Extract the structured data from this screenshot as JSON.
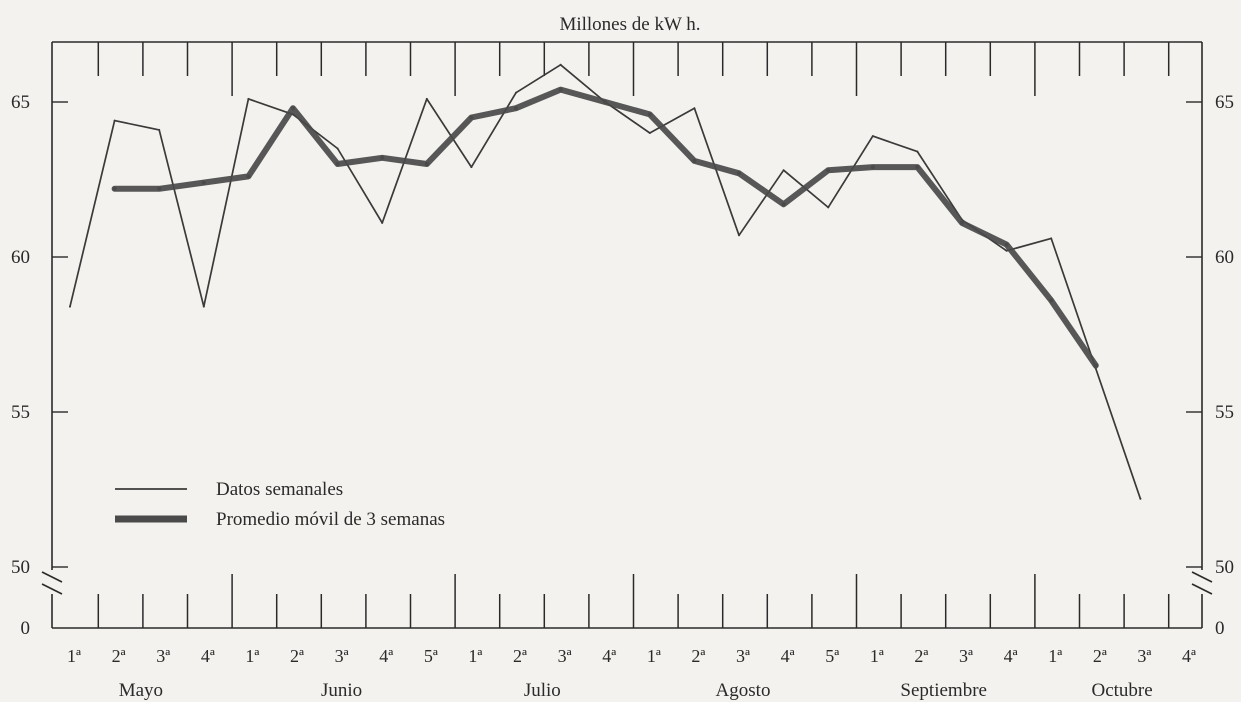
{
  "chart_data": {
    "type": "line",
    "title": "Millones de kW h.",
    "y_ticks_left": [
      "0",
      "50",
      "55",
      "60",
      "65"
    ],
    "y_ticks_right": [
      "0",
      "50",
      "55",
      "60",
      "65"
    ],
    "y_tick_values": [
      50,
      55,
      60,
      65
    ],
    "ylim": [
      50,
      67
    ],
    "y_axis_break": "between 0 and 50",
    "weeks": [
      "1ª",
      "2ª",
      "3ª",
      "4ª",
      "1ª",
      "2ª",
      "3ª",
      "4ª",
      "5ª",
      "1ª",
      "2ª",
      "3ª",
      "4ª",
      "1ª",
      "2ª",
      "3ª",
      "4ª",
      "5ª",
      "1ª",
      "2ª",
      "3ª",
      "4ª",
      "1ª",
      "2ª",
      "3ª",
      "4ª"
    ],
    "months": [
      {
        "name": "Mayo",
        "first_week": 0,
        "last_week": 3
      },
      {
        "name": "Junio",
        "first_week": 4,
        "last_week": 8
      },
      {
        "name": "Julio",
        "first_week": 9,
        "last_week": 12
      },
      {
        "name": "Agosto",
        "first_week": 13,
        "last_week": 17
      },
      {
        "name": "Septiembre",
        "first_week": 18,
        "last_week": 21
      },
      {
        "name": "Octubre",
        "first_week": 22,
        "last_week": 25
      }
    ],
    "series": [
      {
        "name": "Datos semanales",
        "style": "thin",
        "color": "#3a3a3a",
        "values": [
          58.4,
          64.4,
          64.1,
          58.4,
          65.1,
          64.6,
          63.5,
          61.1,
          65.1,
          62.9,
          65.3,
          66.2,
          65.0,
          64.0,
          64.8,
          60.7,
          62.8,
          61.6,
          63.9,
          63.4,
          61.2,
          60.2,
          60.6,
          56.4,
          52.2,
          null
        ]
      },
      {
        "name": "Promedio móvil de 3 semanas",
        "style": "thick",
        "color": "#4a4a4a",
        "values": [
          null,
          62.2,
          62.2,
          62.4,
          62.6,
          64.8,
          63.0,
          63.2,
          63.0,
          64.5,
          64.8,
          65.4,
          65.0,
          64.6,
          63.1,
          62.7,
          61.7,
          62.8,
          62.9,
          62.9,
          61.1,
          60.4,
          58.6,
          56.5,
          null,
          null
        ]
      }
    ],
    "legend_position": "lower-left",
    "grid": false
  }
}
